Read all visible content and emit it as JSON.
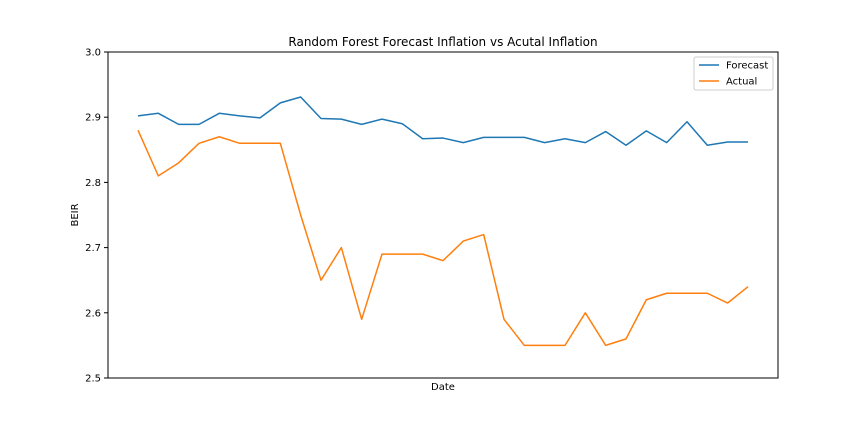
{
  "chart_data": {
    "type": "line",
    "title": "Random Forest Forecast Inflation vs Acutal Inflation",
    "xlabel": "Date",
    "ylabel": "BEIR",
    "ylim": [
      2.5,
      3.0
    ],
    "yticks": [
      "2.5",
      "2.6",
      "2.7",
      "2.8",
      "2.9",
      "3.0"
    ],
    "grid": false,
    "legend_position": "top-right",
    "x": [
      1,
      2,
      3,
      4,
      5,
      6,
      7,
      8,
      9,
      10,
      11,
      12,
      13,
      14,
      15,
      16,
      17,
      18,
      19,
      20,
      21,
      22,
      23,
      24,
      25,
      26,
      27,
      28,
      29,
      30,
      31
    ],
    "series": [
      {
        "name": "Forecast",
        "color": "#1f77b4",
        "values": [
          2.902,
          2.906,
          2.889,
          2.889,
          2.906,
          2.902,
          2.899,
          2.922,
          2.931,
          2.898,
          2.897,
          2.889,
          2.897,
          2.89,
          2.867,
          2.868,
          2.861,
          2.869,
          2.869,
          2.869,
          2.861,
          2.867,
          2.861,
          2.878,
          2.857,
          2.879,
          2.861,
          2.893,
          2.857,
          2.862,
          2.862
        ]
      },
      {
        "name": "Actual",
        "color": "#ff7f0e",
        "values": [
          2.88,
          2.81,
          2.83,
          2.86,
          2.87,
          2.86,
          2.86,
          2.86,
          2.75,
          2.65,
          2.7,
          2.59,
          2.69,
          2.69,
          2.69,
          2.68,
          2.71,
          2.72,
          2.59,
          2.55,
          2.55,
          2.55,
          2.6,
          2.55,
          2.56,
          2.62,
          2.63,
          2.63,
          2.63,
          2.615,
          2.64
        ]
      }
    ]
  }
}
